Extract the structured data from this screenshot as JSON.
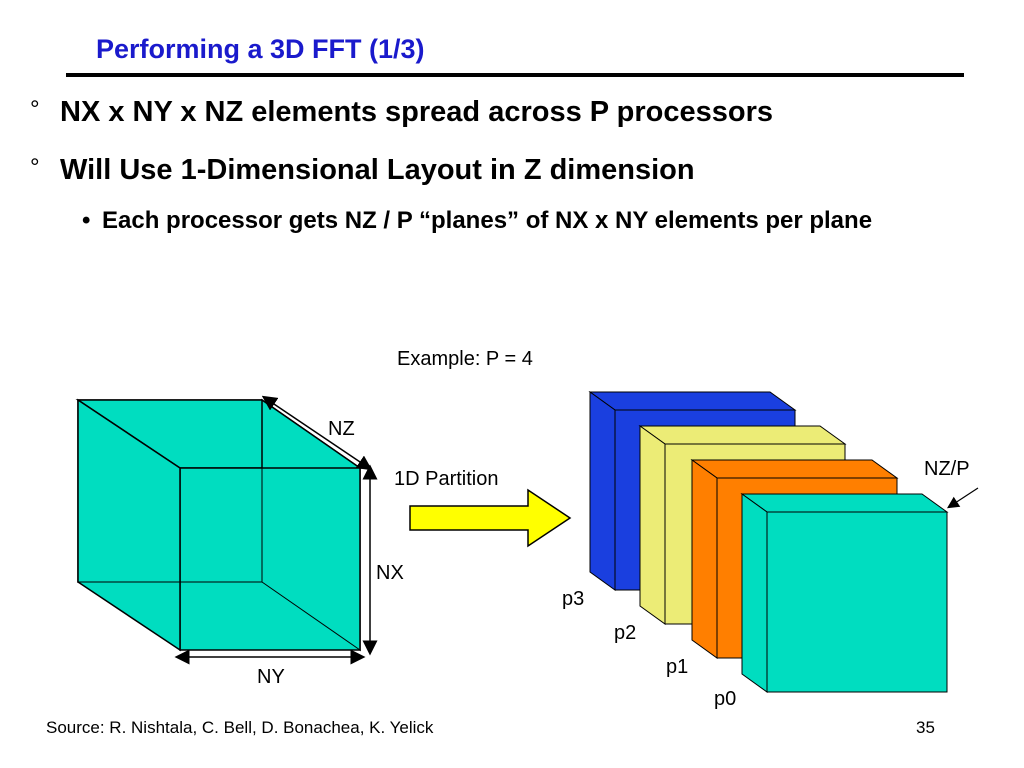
{
  "slide": {
    "title": "Performing a 3D FFT (1/3)",
    "bullets": [
      {
        "mark": "°",
        "text": "NX x NY x NZ elements spread across P processors"
      },
      {
        "mark": "°",
        "text": "Will Use 1-Dimensional Layout in Z dimension"
      }
    ],
    "sub_bullet": {
      "mark": "•",
      "text": "Each processor gets NZ / P “planes” of  NX x NY elements per plane"
    },
    "footer_source": "Source:  R. Nishtala, C. Bell, D. Bonachea, K. Yelick",
    "page_number": "35"
  },
  "diagram": {
    "example_label": "Example: P = 4",
    "cube_labels": {
      "nz": "NZ",
      "nx": "NX",
      "ny": "NY"
    },
    "arrow_label": "1D Partition",
    "nzp_label": "NZ/P",
    "slabs": [
      {
        "label": "p3",
        "color": "#1a3fdf"
      },
      {
        "label": "p2",
        "color": "#ecec76"
      },
      {
        "label": "p1",
        "color": "#ff7f00"
      },
      {
        "label": "p0",
        "color": "#00ddc0"
      }
    ],
    "cube_color": "#00ddc0",
    "arrow_color": "#ffff00",
    "title_color": "#1a1acc"
  }
}
